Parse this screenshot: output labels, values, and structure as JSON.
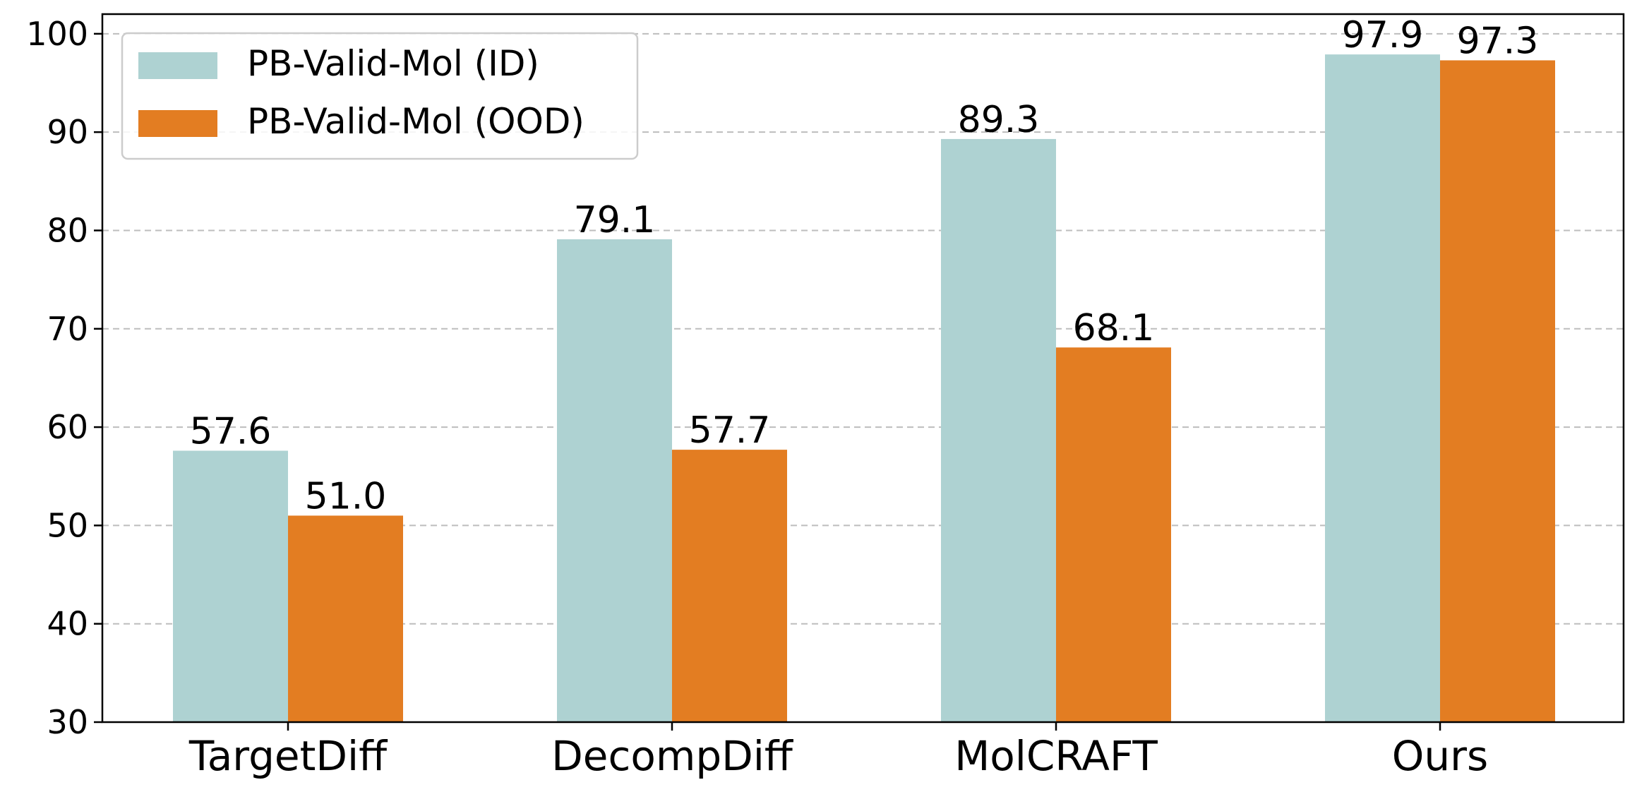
{
  "chart_data": {
    "type": "bar",
    "categories": [
      "TargetDiff",
      "DecompDiff",
      "MolCRAFT",
      "Ours"
    ],
    "series": [
      {
        "name": "PB-Valid-Mol (ID)",
        "values": [
          57.6,
          79.1,
          89.3,
          97.9
        ],
        "color": "#aed2d2"
      },
      {
        "name": "PB-Valid-Mol (OOD)",
        "values": [
          51.0,
          57.7,
          68.1,
          97.3
        ],
        "color": "#e37d22"
      }
    ],
    "data_labels": [
      [
        "57.6",
        "79.1",
        "89.3",
        "97.9"
      ],
      [
        "51.0",
        "57.7",
        "68.1",
        "97.3"
      ]
    ],
    "ylim": [
      30,
      102
    ],
    "yticks": [
      30,
      40,
      50,
      60,
      70,
      80,
      90,
      100
    ],
    "ytick_labels": [
      "30",
      "40",
      "50",
      "60",
      "70",
      "80",
      "90",
      "100"
    ],
    "title": "",
    "xlabel": "",
    "ylabel": "",
    "grid": "horizontal dashed",
    "legend_position": "top-left"
  }
}
